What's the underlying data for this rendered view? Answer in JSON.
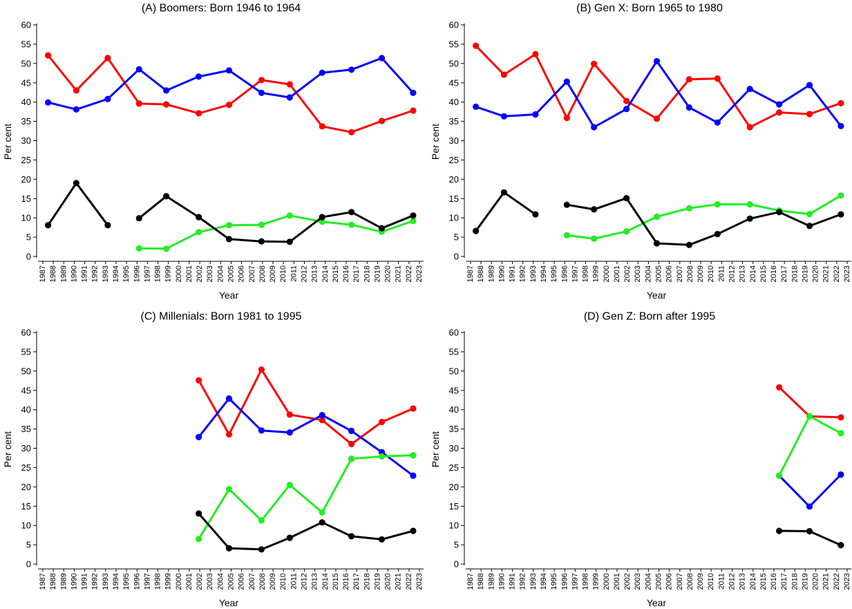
{
  "chart_data": [
    {
      "type": "line",
      "title": "(A) Boomers: Born 1946 to 1964",
      "xlabel": "Year",
      "ylabel": "Per cent",
      "xlim": [
        1987,
        2023
      ],
      "ylim": [
        0,
        60
      ],
      "grid": false,
      "yticks": [
        0,
        5,
        10,
        15,
        20,
        25,
        30,
        35,
        40,
        45,
        50,
        55,
        60
      ],
      "xticks": [
        1987,
        1988,
        1989,
        1990,
        1991,
        1992,
        1993,
        1994,
        1995,
        1996,
        1997,
        1998,
        1999,
        2000,
        2001,
        2002,
        2003,
        2004,
        2005,
        2006,
        2007,
        2008,
        2009,
        2010,
        2011,
        2012,
        2013,
        2014,
        2015,
        2016,
        2017,
        2018,
        2019,
        2020,
        2021,
        2022,
        2023
      ],
      "x": [
        1987.5,
        1990.2,
        1993.2,
        1996.2,
        1998.8,
        2001.9,
        2004.8,
        2007.9,
        2010.6,
        2013.7,
        2016.5,
        2019.4,
        2022.4
      ],
      "series": [
        {
          "color": "#ff0000",
          "values": [
            52.1,
            43.0,
            51.4,
            39.6,
            39.4,
            37.1,
            39.3,
            45.7,
            44.6,
            33.7,
            32.2,
            35.1,
            37.8
          ]
        },
        {
          "color": "#0000ff",
          "values": [
            39.9,
            38.1,
            40.8,
            48.5,
            43.0,
            46.6,
            48.2,
            42.4,
            41.2,
            47.6,
            48.4,
            51.4,
            42.4
          ]
        },
        {
          "color": "#22ee22",
          "values": [
            null,
            null,
            null,
            2.1,
            2.0,
            6.3,
            8.1,
            8.2,
            10.6,
            9.0,
            8.2,
            6.4,
            9.2
          ]
        },
        {
          "color": "#000000",
          "values": [
            8.1,
            19.0,
            8.1,
            9.9,
            15.6,
            10.2,
            4.5,
            3.9,
            3.8,
            10.2,
            11.5,
            7.3,
            10.6
          ],
          "break_after_x": [
            1993.2
          ]
        }
      ]
    },
    {
      "type": "line",
      "title": "(B) Gen X: Born 1965 to 1980",
      "xlabel": "Year",
      "ylabel": "Per cent",
      "xlim": [
        1987,
        2023
      ],
      "ylim": [
        0,
        60
      ],
      "grid": false,
      "yticks": [
        0,
        5,
        10,
        15,
        20,
        25,
        30,
        35,
        40,
        45,
        50,
        55,
        60
      ],
      "xticks": [
        1987,
        1988,
        1989,
        1990,
        1991,
        1992,
        1993,
        1994,
        1995,
        1996,
        1997,
        1998,
        1999,
        2000,
        2001,
        2002,
        2003,
        2004,
        2005,
        2006,
        2007,
        2008,
        2009,
        2010,
        2011,
        2012,
        2013,
        2014,
        2015,
        2016,
        2017,
        2018,
        2019,
        2020,
        2021,
        2022,
        2023
      ],
      "x": [
        1987.5,
        1990.2,
        1993.2,
        1996.2,
        1998.8,
        2001.9,
        2004.8,
        2007.9,
        2010.6,
        2013.7,
        2016.5,
        2019.4,
        2022.4
      ],
      "series": [
        {
          "color": "#ff0000",
          "values": [
            54.6,
            47.1,
            52.4,
            35.9,
            49.9,
            40.3,
            35.7,
            45.9,
            46.1,
            33.5,
            37.3,
            36.9,
            39.7
          ]
        },
        {
          "color": "#0000ff",
          "values": [
            38.8,
            36.3,
            36.8,
            45.3,
            33.5,
            38.2,
            50.6,
            38.6,
            34.7,
            43.4,
            39.4,
            44.4,
            33.8
          ]
        },
        {
          "color": "#22ee22",
          "values": [
            null,
            null,
            null,
            5.5,
            4.6,
            6.5,
            10.3,
            12.5,
            13.5,
            13.5,
            11.9,
            11.0,
            15.8
          ]
        },
        {
          "color": "#000000",
          "values": [
            6.6,
            16.6,
            10.9,
            13.4,
            12.2,
            15.1,
            3.4,
            3.0,
            5.8,
            9.8,
            11.5,
            7.9,
            10.9
          ],
          "break_after_x": [
            1993.2
          ]
        }
      ]
    },
    {
      "type": "line",
      "title": "(C) Millenials: Born 1981 to 1995",
      "xlabel": "Year",
      "ylabel": "Per cent",
      "xlim": [
        1987,
        2023
      ],
      "ylim": [
        0,
        60
      ],
      "grid": false,
      "yticks": [
        0,
        5,
        10,
        15,
        20,
        25,
        30,
        35,
        40,
        45,
        50,
        55,
        60
      ],
      "xticks": [
        1987,
        1988,
        1989,
        1990,
        1991,
        1992,
        1993,
        1994,
        1995,
        1996,
        1997,
        1998,
        1999,
        2000,
        2001,
        2002,
        2003,
        2004,
        2005,
        2006,
        2007,
        2008,
        2009,
        2010,
        2011,
        2012,
        2013,
        2014,
        2015,
        2016,
        2017,
        2018,
        2019,
        2020,
        2021,
        2022,
        2023
      ],
      "x": [
        1987.5,
        1990.2,
        1993.2,
        1996.2,
        1998.8,
        2001.9,
        2004.8,
        2007.9,
        2010.6,
        2013.7,
        2016.5,
        2019.4,
        2022.4
      ],
      "series": [
        {
          "color": "#ff0000",
          "values": [
            null,
            null,
            null,
            null,
            null,
            47.6,
            33.6,
            50.4,
            38.7,
            37.3,
            31.1,
            36.8,
            40.3
          ]
        },
        {
          "color": "#0000ff",
          "values": [
            null,
            null,
            null,
            null,
            null,
            32.9,
            42.9,
            34.6,
            34.1,
            38.6,
            34.5,
            29.0,
            22.9
          ]
        },
        {
          "color": "#22ee22",
          "values": [
            null,
            null,
            null,
            null,
            null,
            6.5,
            19.4,
            11.3,
            20.5,
            13.4,
            27.3,
            27.9,
            28.2
          ]
        },
        {
          "color": "#000000",
          "values": [
            null,
            null,
            null,
            null,
            null,
            13.1,
            4.1,
            3.8,
            6.8,
            10.8,
            7.2,
            6.4,
            8.6
          ]
        }
      ]
    },
    {
      "type": "line",
      "title": "(D) Gen Z: Born after 1995",
      "xlabel": "Year",
      "ylabel": "Per cent",
      "xlim": [
        1987,
        2023
      ],
      "ylim": [
        0,
        60
      ],
      "grid": false,
      "yticks": [
        0,
        5,
        10,
        15,
        20,
        25,
        30,
        35,
        40,
        45,
        50,
        55,
        60
      ],
      "xticks": [
        1987,
        1988,
        1989,
        1990,
        1991,
        1992,
        1993,
        1994,
        1995,
        1996,
        1997,
        1998,
        1999,
        2000,
        2001,
        2002,
        2003,
        2004,
        2005,
        2006,
        2007,
        2008,
        2009,
        2010,
        2011,
        2012,
        2013,
        2014,
        2015,
        2016,
        2017,
        2018,
        2019,
        2020,
        2021,
        2022,
        2023
      ],
      "x": [
        1987.5,
        1990.2,
        1993.2,
        1996.2,
        1998.8,
        2001.9,
        2004.8,
        2007.9,
        2010.6,
        2013.7,
        2016.5,
        2019.4,
        2022.4
      ],
      "series": [
        {
          "color": "#ff0000",
          "values": [
            null,
            null,
            null,
            null,
            null,
            null,
            null,
            null,
            null,
            null,
            45.8,
            38.3,
            38.0
          ]
        },
        {
          "color": "#0000ff",
          "values": [
            null,
            null,
            null,
            null,
            null,
            null,
            null,
            null,
            null,
            null,
            22.9,
            14.9,
            23.2
          ]
        },
        {
          "color": "#22ee22",
          "values": [
            null,
            null,
            null,
            null,
            null,
            null,
            null,
            null,
            null,
            null,
            22.9,
            38.3,
            33.9
          ]
        },
        {
          "color": "#000000",
          "values": [
            null,
            null,
            null,
            null,
            null,
            null,
            null,
            null,
            null,
            null,
            8.6,
            8.5,
            4.9
          ]
        }
      ]
    }
  ]
}
